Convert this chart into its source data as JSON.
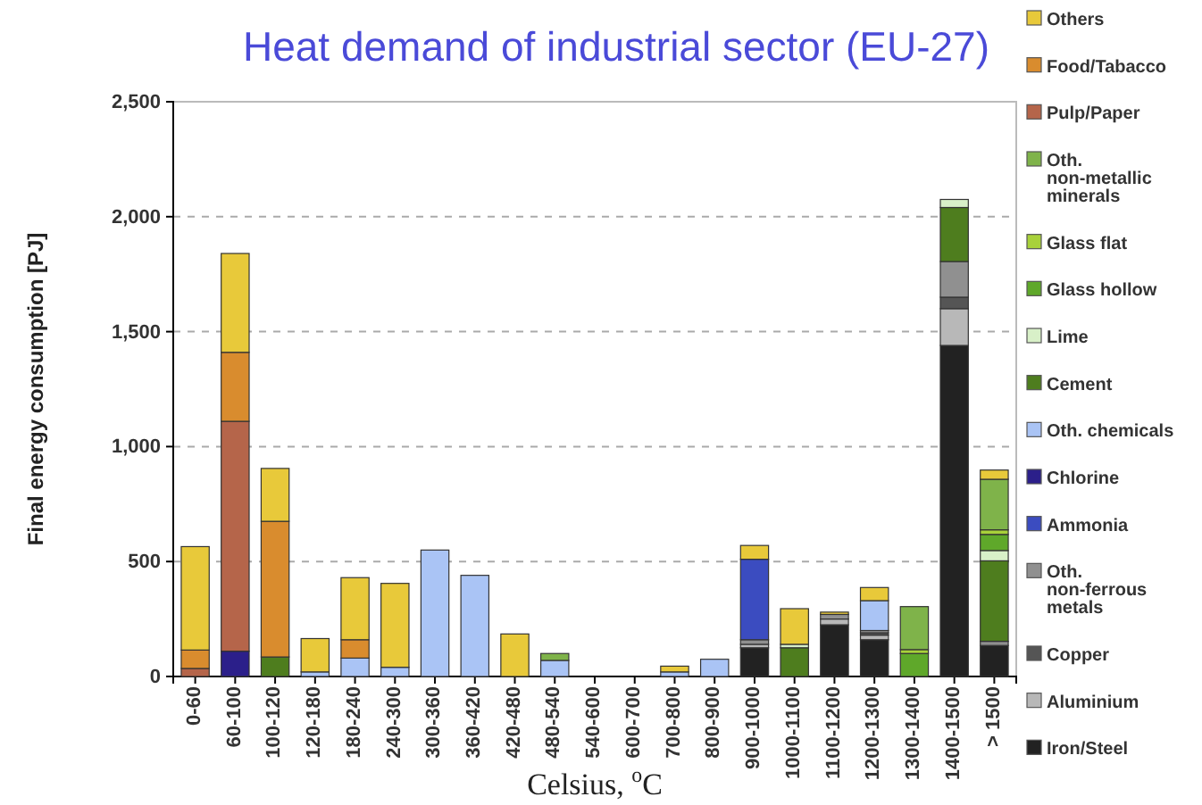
{
  "chart_data": {
    "type": "bar",
    "stacked": true,
    "title": "Heat demand of industrial sector (EU-27)",
    "xlabel": "Celsius, $^{o}$C",
    "ylabel": "Final energy consumption [PJ]",
    "categories": [
      "0-60",
      "60-100",
      "100-120",
      "120-180",
      "180-240",
      "240-300",
      "300-360",
      "360-420",
      "420-480",
      "480-540",
      "540-600",
      "600-700",
      "700-800",
      "800-900",
      "900-1000",
      "1000-1100",
      "1100-1200",
      "1200-1300",
      "1300-1400",
      "1400-1500",
      "> 1500"
    ],
    "ylim": [
      0,
      2500
    ],
    "yticks": [
      0,
      {
        "value": 500,
        "label": "500"
      },
      {
        "value": 1000,
        "label": "1,000"
      },
      {
        "value": 1500,
        "label": "1,500"
      },
      {
        "value": 2000,
        "label": "2,000"
      },
      {
        "value": 2500,
        "label": "2,500"
      }
    ],
    "grid": "y",
    "legend": "right",
    "series": [
      {
        "name": "Iron/Steel",
        "color": "#222222",
        "values": [
          0,
          0,
          0,
          0,
          0,
          0,
          0,
          0,
          0,
          0,
          0,
          0,
          0,
          0,
          125,
          0,
          225,
          160,
          0,
          1440,
          135
        ]
      },
      {
        "name": "Aluminium",
        "color": "#b8b8b8",
        "values": [
          0,
          0,
          0,
          0,
          0,
          0,
          0,
          0,
          0,
          0,
          0,
          0,
          0,
          0,
          15,
          0,
          25,
          20,
          0,
          160,
          0
        ]
      },
      {
        "name": "Copper",
        "color": "#555555",
        "values": [
          0,
          0,
          0,
          0,
          0,
          0,
          0,
          0,
          0,
          0,
          0,
          0,
          0,
          0,
          0,
          0,
          0,
          10,
          0,
          50,
          0
        ]
      },
      {
        "name": "Oth. non-ferrous metals",
        "color": "#909090",
        "values": [
          0,
          0,
          0,
          0,
          0,
          0,
          0,
          0,
          0,
          0,
          0,
          0,
          0,
          0,
          20,
          0,
          20,
          10,
          0,
          155,
          18
        ]
      },
      {
        "name": "Ammonia",
        "color": "#3b4cc0",
        "values": [
          0,
          0,
          0,
          0,
          0,
          0,
          0,
          0,
          0,
          0,
          0,
          0,
          0,
          0,
          350,
          0,
          0,
          0,
          0,
          0,
          0
        ]
      },
      {
        "name": "Chlorine",
        "color": "#2b1f8a",
        "values": [
          0,
          110,
          0,
          0,
          0,
          0,
          0,
          0,
          0,
          0,
          0,
          0,
          0,
          0,
          0,
          0,
          0,
          0,
          0,
          0,
          0
        ]
      },
      {
        "name": "Oth. chemicals",
        "color": "#aac4f5",
        "values": [
          0,
          0,
          0,
          20,
          80,
          40,
          550,
          440,
          0,
          70,
          0,
          0,
          20,
          75,
          0,
          0,
          0,
          130,
          0,
          0,
          0
        ]
      },
      {
        "name": "Cement",
        "color": "#4e7d1e",
        "values": [
          0,
          0,
          85,
          0,
          0,
          0,
          0,
          0,
          0,
          0,
          0,
          0,
          0,
          0,
          0,
          125,
          0,
          0,
          0,
          235,
          350
        ]
      },
      {
        "name": "Lime",
        "color": "#d8f0c8",
        "values": [
          0,
          0,
          0,
          0,
          0,
          0,
          0,
          0,
          0,
          0,
          0,
          0,
          0,
          0,
          0,
          15,
          0,
          0,
          0,
          35,
          45
        ]
      },
      {
        "name": "Glass hollow",
        "color": "#5fa82a",
        "values": [
          0,
          0,
          0,
          0,
          0,
          0,
          0,
          0,
          0,
          0,
          0,
          0,
          0,
          0,
          0,
          0,
          0,
          0,
          100,
          0,
          70
        ]
      },
      {
        "name": "Glass flat",
        "color": "#a8d13a",
        "values": [
          0,
          0,
          0,
          0,
          0,
          0,
          0,
          0,
          0,
          0,
          0,
          0,
          0,
          0,
          0,
          0,
          0,
          0,
          17,
          0,
          20
        ]
      },
      {
        "name": "Oth. non-metallic minerals",
        "color": "#7fb34a",
        "values": [
          0,
          0,
          0,
          0,
          0,
          0,
          0,
          0,
          0,
          30,
          0,
          0,
          0,
          0,
          0,
          0,
          0,
          0,
          187,
          0,
          220
        ]
      },
      {
        "name": "Pulp/Paper",
        "color": "#b5654a",
        "values": [
          35,
          1000,
          0,
          0,
          0,
          0,
          0,
          0,
          0,
          0,
          0,
          0,
          0,
          0,
          0,
          0,
          0,
          0,
          0,
          0,
          0
        ]
      },
      {
        "name": "Food/Tabacco",
        "color": "#d98c2e",
        "values": [
          80,
          300,
          590,
          0,
          80,
          0,
          0,
          0,
          0,
          0,
          0,
          0,
          0,
          0,
          0,
          0,
          0,
          0,
          0,
          0,
          0
        ]
      },
      {
        "name": "Others",
        "color": "#e8c93a",
        "values": [
          450,
          430,
          230,
          145,
          270,
          365,
          0,
          0,
          185,
          0,
          0,
          0,
          25,
          0,
          60,
          155,
          10,
          57,
          0,
          0,
          40
        ]
      }
    ]
  }
}
